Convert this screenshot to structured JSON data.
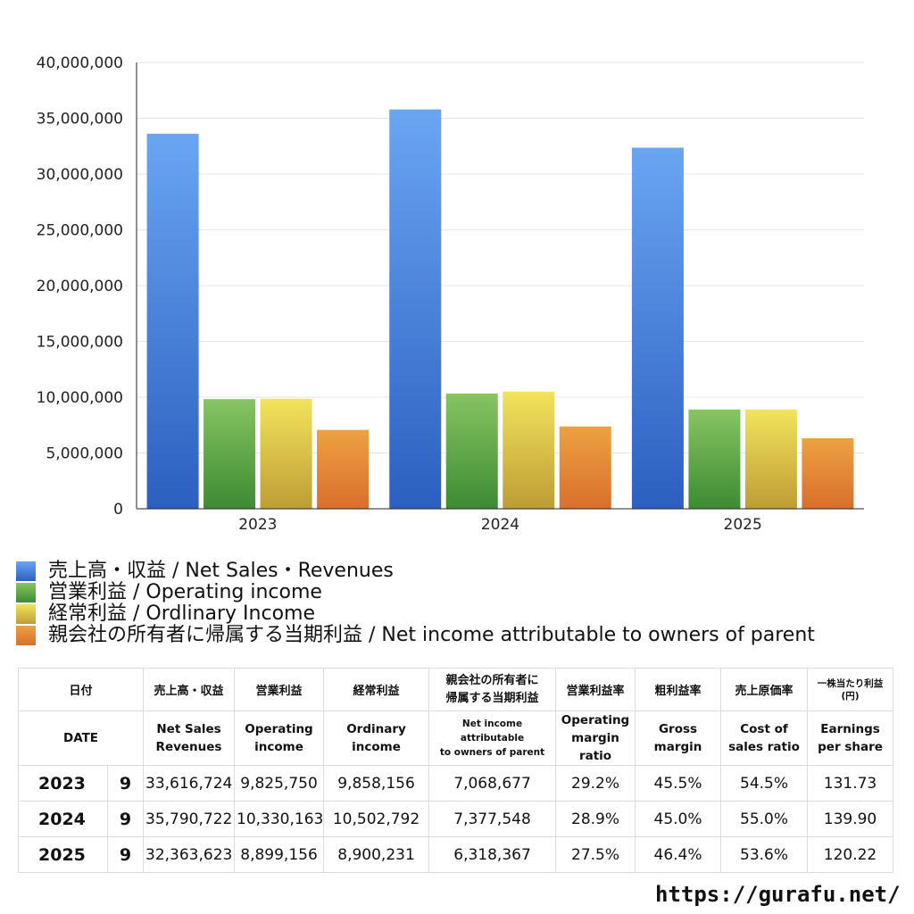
{
  "chart_data": {
    "type": "bar",
    "categories": [
      "2023",
      "2024",
      "2025"
    ],
    "ylim": [
      0,
      40000000
    ],
    "yticks": [
      0,
      5000000,
      10000000,
      15000000,
      20000000,
      25000000,
      30000000,
      35000000,
      40000000
    ],
    "ytick_labels": [
      "0",
      "5,000,000",
      "10,000,000",
      "15,000,000",
      "20,000,000",
      "25,000,000",
      "30,000,000",
      "35,000,000",
      "40,000,000"
    ],
    "grid": true,
    "legend_position": "bottom-left",
    "series": [
      {
        "name": "売上高・収益 / Net Sales・Revenues",
        "values": [
          33616724,
          35790722,
          32363623
        ],
        "color_top": "#6aa5f2",
        "color_bottom": "#2c5fc0"
      },
      {
        "name": "営業利益 / Operating income",
        "values": [
          9825750,
          10330163,
          8899156
        ],
        "color_top": "#88c462",
        "color_bottom": "#3c8b33"
      },
      {
        "name": "経常利益 / Ordlinary Income",
        "values": [
          9858156,
          10502792,
          8900231
        ],
        "color_top": "#f3e35c",
        "color_bottom": "#bd9d35"
      },
      {
        "name": "親会社の所有者に帰属する当期利益 / Net income attributable to owners of parent",
        "values": [
          7068677,
          7377548,
          6318367
        ],
        "color_top": "#eda142",
        "color_bottom": "#d96f2c"
      }
    ]
  },
  "table": {
    "header_jp": {
      "date": "日付",
      "sales": "売上高・収益",
      "op": "営業利益",
      "ord": "経常利益",
      "net_l1": "親会社の所有者に",
      "net_l2": "帰属する当期利益",
      "opm": "営業利益率",
      "gm": "粗利益率",
      "cos": "売上原価率",
      "eps_l1": "一株当たり利益",
      "eps_l2": "(円)"
    },
    "header_en": {
      "date": "DATE",
      "sales_l1": "Net Sales",
      "sales_l2": "Revenues",
      "op_l1": "Operating",
      "op_l2": "income",
      "ord_l1": "Ordinary",
      "ord_l2": "income",
      "net_l1": "Net income attributable",
      "net_l2": "to owners of parent",
      "opm_l1": "Operating",
      "opm_l2": "margin",
      "opm_l3": "ratio",
      "gm_l1": "Gross",
      "gm_l2": "margin",
      "cos_l1": "Cost of",
      "cos_l2": "sales ratio",
      "eps_l1": "Earnings",
      "eps_l2": "per share"
    },
    "rows": [
      {
        "year": "2023",
        "month": "9",
        "sales": "33,616,724",
        "op": "9,825,750",
        "ord": "9,858,156",
        "net": "7,068,677",
        "opm": "29.2%",
        "gm": "45.5%",
        "cos": "54.5%",
        "eps": "131.73"
      },
      {
        "year": "2024",
        "month": "9",
        "sales": "35,790,722",
        "op": "10,330,163",
        "ord": "10,502,792",
        "net": "7,377,548",
        "opm": "28.9%",
        "gm": "45.0%",
        "cos": "55.0%",
        "eps": "139.90"
      },
      {
        "year": "2025",
        "month": "9",
        "sales": "32,363,623",
        "op": "8,899,156",
        "ord": "8,900,231",
        "net": "6,318,367",
        "opm": "27.5%",
        "gm": "46.4%",
        "cos": "53.6%",
        "eps": "120.22"
      }
    ]
  },
  "source": "https://gurafu.net/"
}
